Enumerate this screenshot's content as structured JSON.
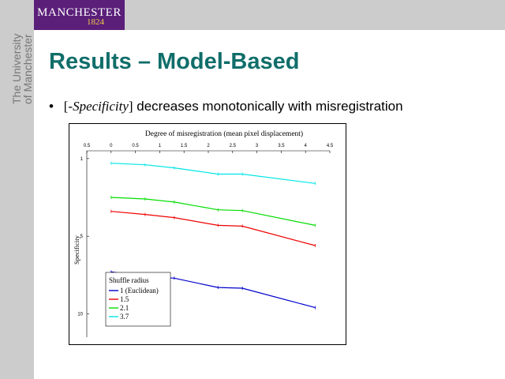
{
  "logo": {
    "name": "MANCHESTER",
    "year": "1824"
  },
  "sidebar": {
    "university_line1": "The University",
    "university_line2": "of Manchester"
  },
  "slide": {
    "title": "Results – Model-Based",
    "bullet": {
      "prefix": "[-",
      "italic": "Specificity",
      "suffix": "]",
      "rest": " decreases monotonically with misregistration"
    }
  },
  "chart_data": {
    "type": "line",
    "title": "Degree of misregistration (mean pixel displacement)",
    "xlabel": "",
    "ylabel": "Specificity",
    "xlim": [
      -0.5,
      4.5
    ],
    "x_ticks": [
      "0.5",
      "0",
      "0.5",
      "1",
      "1.5",
      "2",
      "2.5",
      "3",
      "3.5",
      "4",
      "4.5"
    ],
    "ylim": [
      -11.5,
      0.5
    ],
    "y_ticks": [
      {
        "value": 0,
        "label": "1"
      },
      {
        "value": -5,
        "label": "5"
      },
      {
        "value": -10,
        "label": "10"
      }
    ],
    "x_axis_position": "top",
    "legend": {
      "title": "Shuffle radius",
      "placement": "bottom-left"
    },
    "series": [
      {
        "name": "1 (Euclidean)",
        "color": "#0000cc",
        "points": [
          [
            0,
            -7.3
          ],
          [
            0.7,
            -7.6
          ],
          [
            1.3,
            -7.7
          ],
          [
            2.2,
            -8.3
          ],
          [
            2.7,
            -8.35
          ],
          [
            4.2,
            -9.6
          ]
        ]
      },
      {
        "name": "1.5",
        "color": "#ee0000",
        "points": [
          [
            0,
            -3.4
          ],
          [
            0.7,
            -3.6
          ],
          [
            1.3,
            -3.8
          ],
          [
            2.2,
            -4.3
          ],
          [
            2.7,
            -4.35
          ],
          [
            4.2,
            -5.6
          ]
        ]
      },
      {
        "name": "2.1",
        "color": "#00dd00",
        "points": [
          [
            0,
            -2.5
          ],
          [
            0.7,
            -2.6
          ],
          [
            1.3,
            -2.8
          ],
          [
            2.2,
            -3.3
          ],
          [
            2.7,
            -3.35
          ],
          [
            4.2,
            -4.3
          ]
        ]
      },
      {
        "name": "3.7",
        "color": "#00e5e5",
        "points": [
          [
            0,
            -0.3
          ],
          [
            0.7,
            -0.4
          ],
          [
            1.3,
            -0.6
          ],
          [
            2.2,
            -1.0
          ],
          [
            2.7,
            -1.0
          ],
          [
            4.2,
            -1.6
          ]
        ]
      }
    ]
  }
}
